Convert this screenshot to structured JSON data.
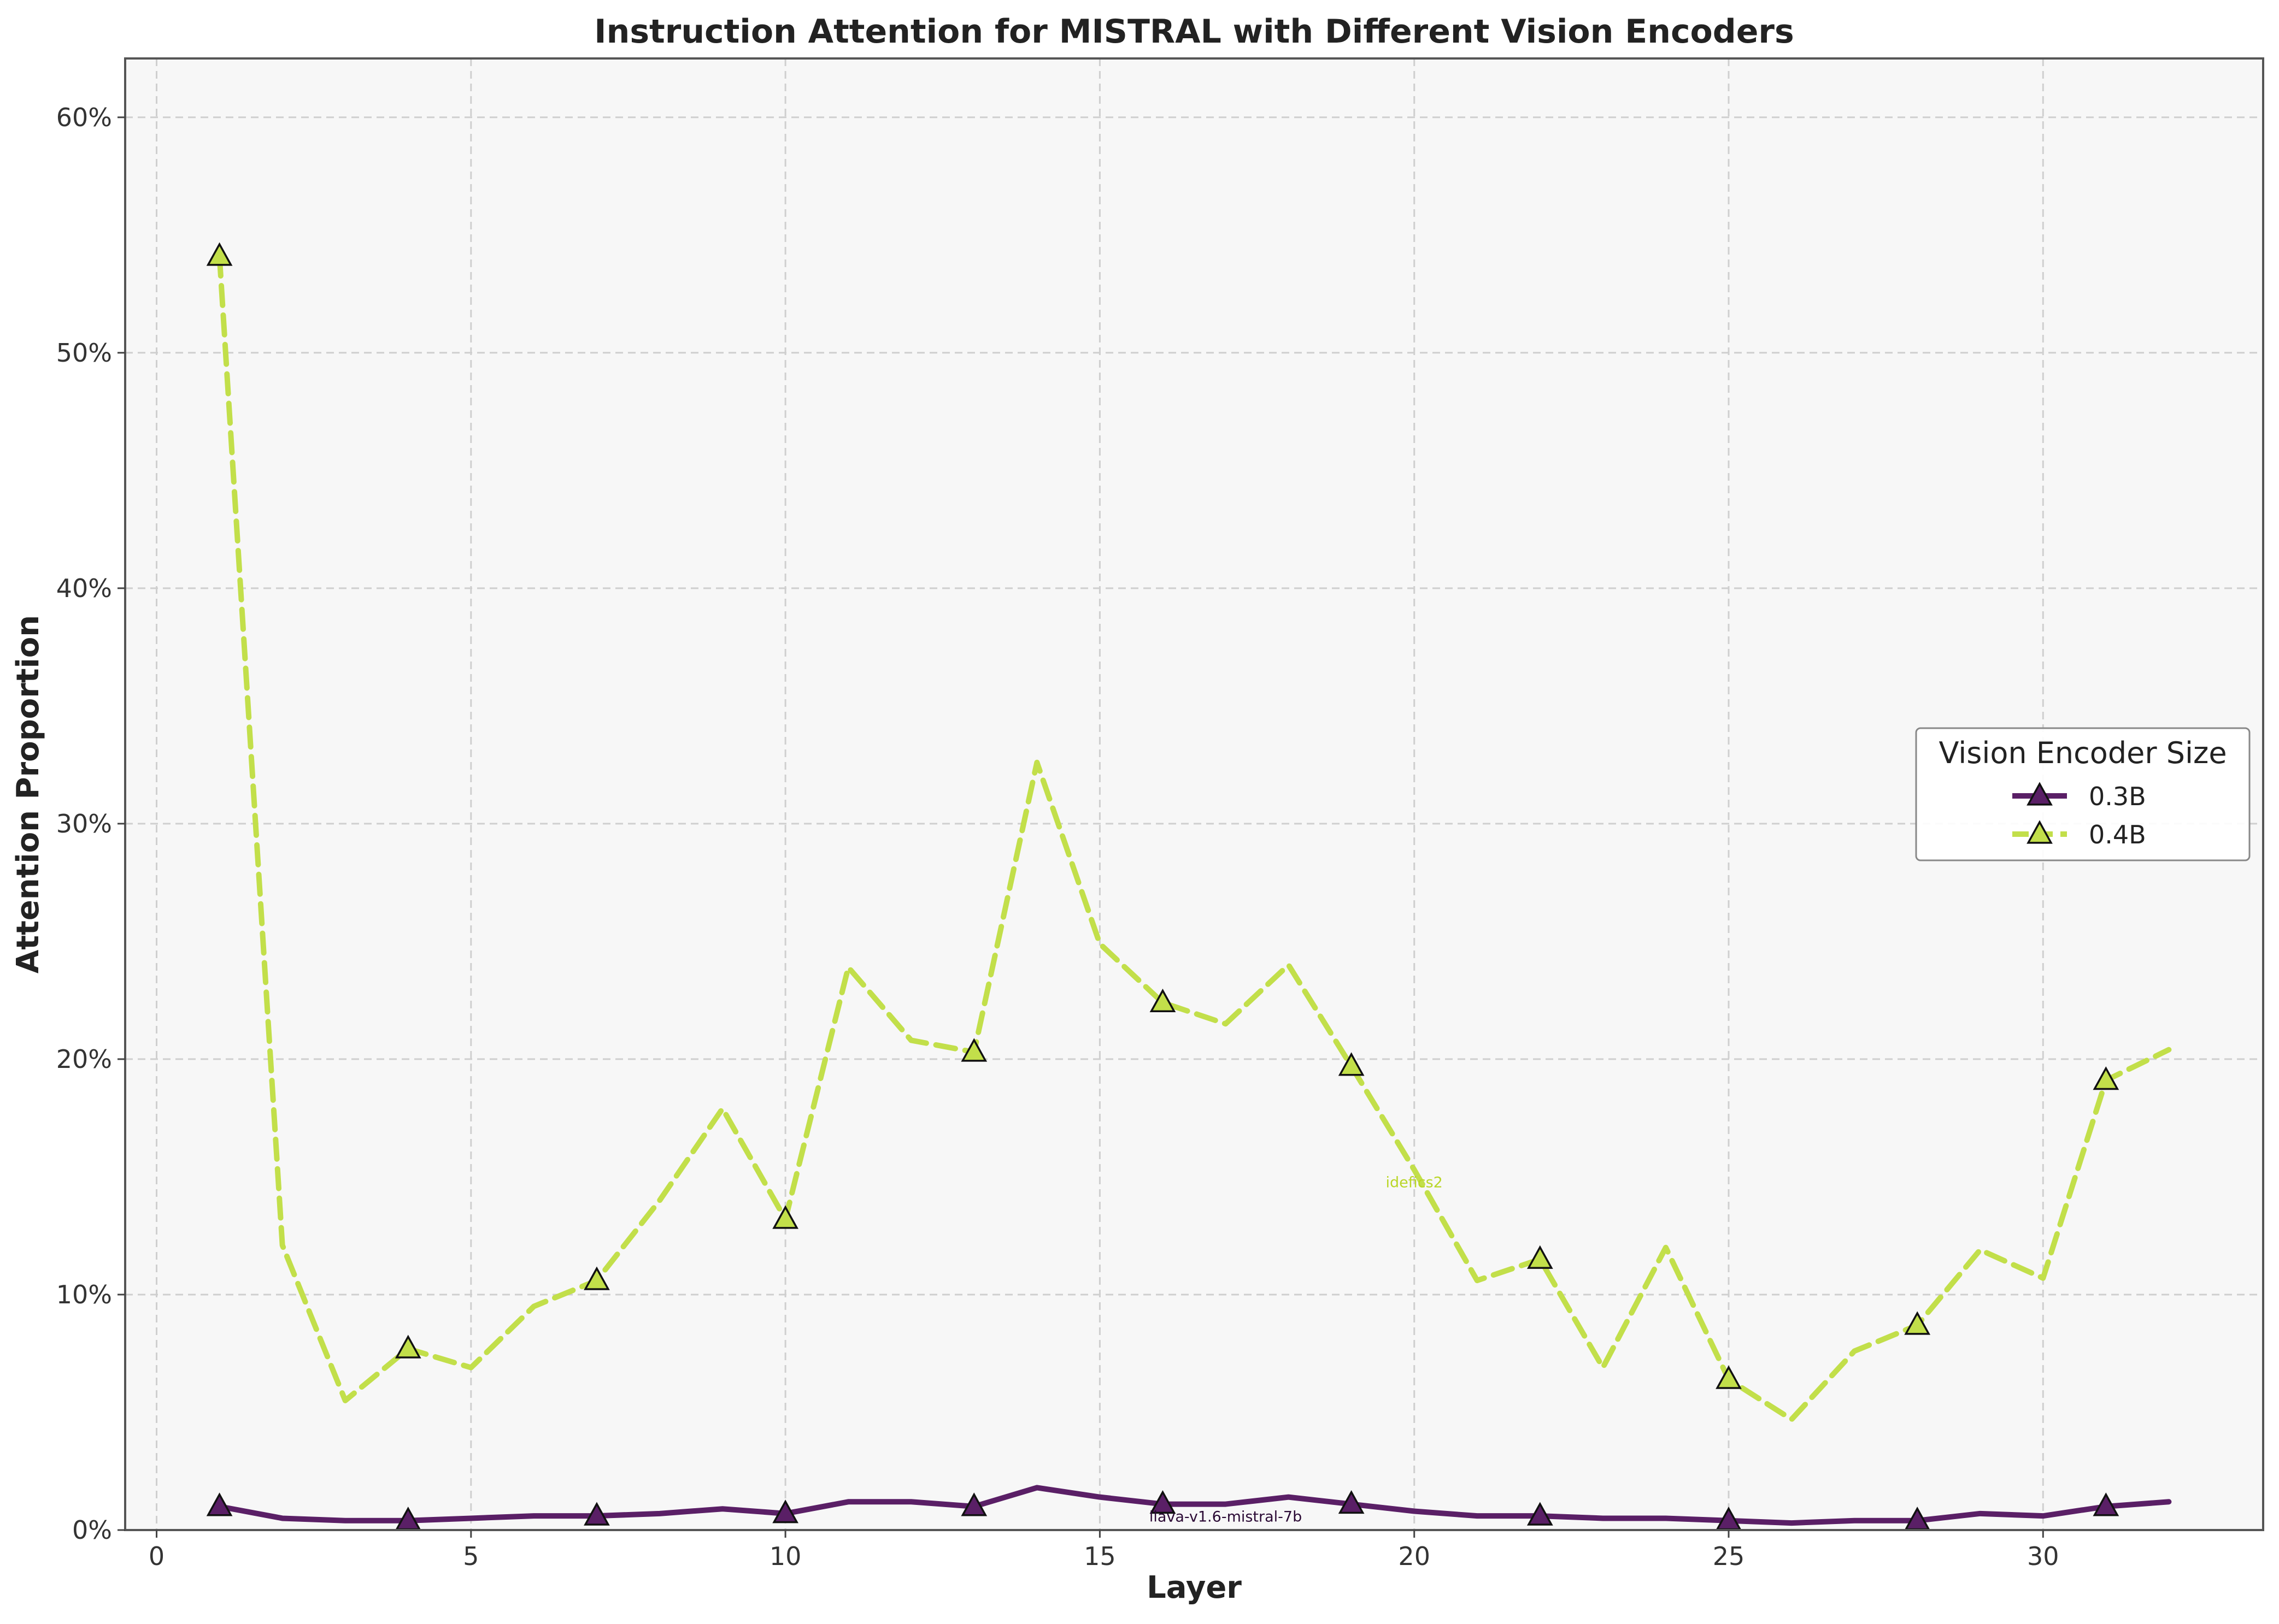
{
  "chart_data": {
    "type": "line",
    "title": "Instruction Attention for MISTRAL with Different Vision Encoders",
    "xlabel": "Layer",
    "ylabel": "Attention Proportion",
    "xlim": [
      -0.5,
      33.5
    ],
    "ylim": [
      0,
      62.5
    ],
    "x_ticks": [
      0,
      5,
      10,
      15,
      20,
      25,
      30
    ],
    "x_tick_labels": [
      "0",
      "5",
      "10",
      "15",
      "20",
      "25",
      "30"
    ],
    "y_ticks": [
      0,
      10,
      20,
      30,
      40,
      50,
      60
    ],
    "y_tick_labels": [
      "0%",
      "10%",
      "20%",
      "30%",
      "40%",
      "50%",
      "60%"
    ],
    "grid": true,
    "legend": {
      "title": "Vision Encoder Size",
      "placement": "center-right"
    },
    "x": [
      1,
      2,
      3,
      4,
      5,
      6,
      7,
      8,
      9,
      10,
      11,
      12,
      13,
      14,
      15,
      16,
      17,
      18,
      19,
      20,
      21,
      22,
      23,
      24,
      25,
      26,
      27,
      28,
      29,
      30,
      31,
      32
    ],
    "series": [
      {
        "name": "0.3B",
        "color": "#5a1f66",
        "line_style": "solid",
        "marker": "triangle",
        "marker_every": 3,
        "annotation": "llava-v1.6-mistral-7b",
        "annotation_at_layer": 17,
        "values": [
          1.0,
          0.5,
          0.4,
          0.4,
          0.5,
          0.6,
          0.6,
          0.7,
          0.9,
          0.7,
          1.2,
          1.2,
          1.0,
          1.8,
          1.4,
          1.1,
          1.1,
          1.4,
          1.1,
          0.8,
          0.6,
          0.6,
          0.5,
          0.5,
          0.4,
          0.3,
          0.4,
          0.4,
          0.7,
          0.6,
          1.0,
          1.2
        ]
      },
      {
        "name": "0.4B",
        "color": "#c2df4a",
        "line_style": "dashed",
        "marker": "triangle",
        "marker_every": 3,
        "annotation": "idefics2",
        "annotation_at_layer": 20,
        "values": [
          54.1,
          12.1,
          5.5,
          7.7,
          6.9,
          9.5,
          10.6,
          14.0,
          17.9,
          13.2,
          23.9,
          20.8,
          20.3,
          32.6,
          24.9,
          22.4,
          21.5,
          24.0,
          19.7,
          15.3,
          10.6,
          11.5,
          6.9,
          12.0,
          6.4,
          4.7,
          7.6,
          8.7,
          11.9,
          10.7,
          19.1,
          20.4
        ]
      }
    ]
  }
}
